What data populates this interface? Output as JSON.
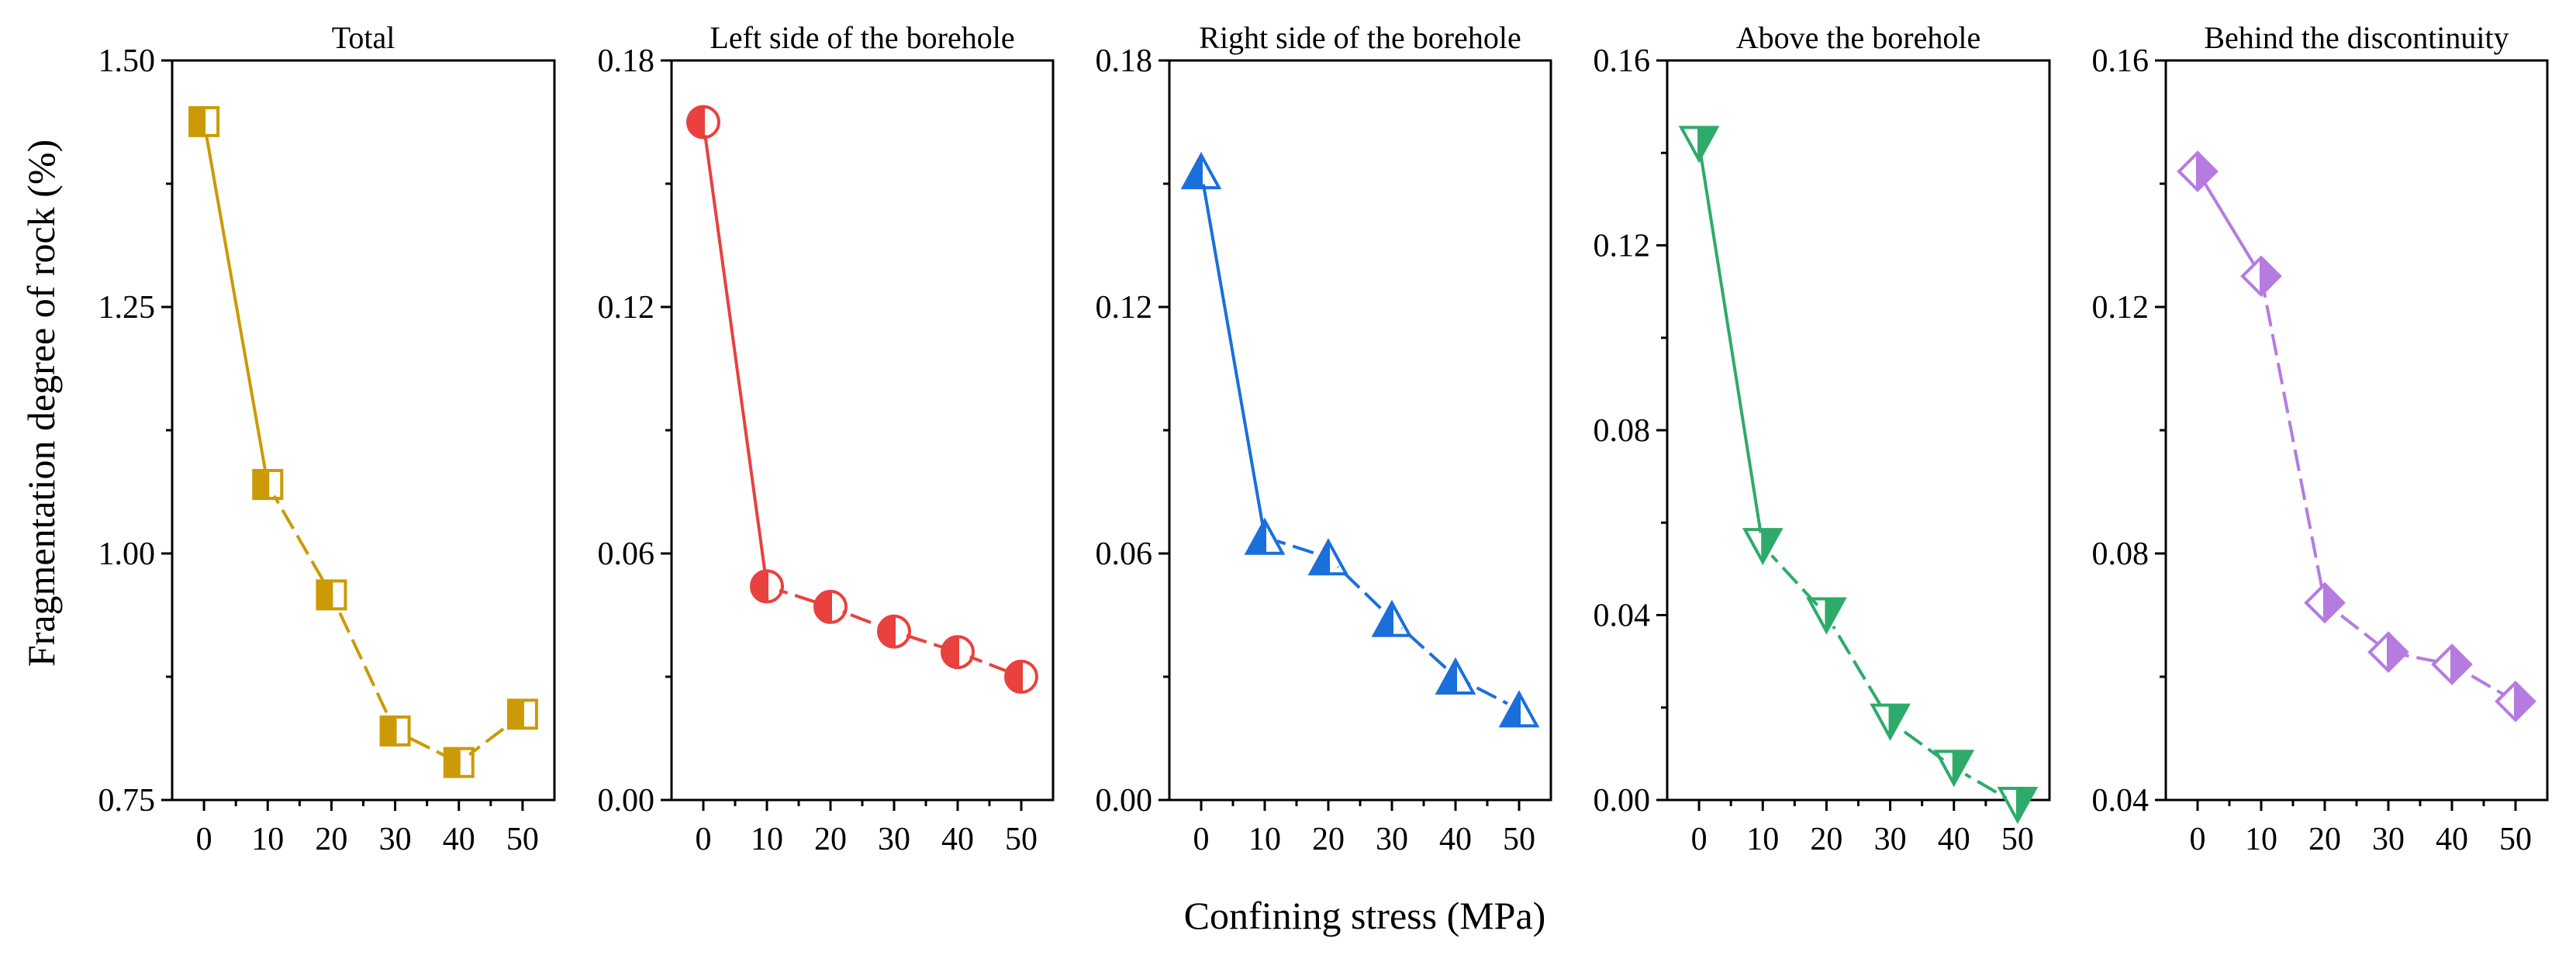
{
  "figure": {
    "shared_xlabel": "Confining stress (MPa)",
    "shared_ylabel": "Fragmentation degree of rock (%)"
  },
  "chart_data": [
    {
      "type": "line",
      "title": "Total",
      "xlabel": "Confining stress (MPa)",
      "ylabel": "Fragmentation degree of rock (%)",
      "x": [
        0,
        10,
        20,
        30,
        40,
        50
      ],
      "values": [
        1.438,
        1.07,
        0.958,
        0.82,
        0.788,
        0.837
      ],
      "xlim": [
        -5,
        55
      ],
      "ylim": [
        0.75,
        1.5
      ],
      "xticks": [
        0,
        10,
        20,
        30,
        40,
        50
      ],
      "xtick_labels": [
        "0",
        "10",
        "20",
        "30",
        "40",
        "50"
      ],
      "yticks": [
        0.75,
        1.0,
        1.25,
        1.5
      ],
      "ytick_labels": [
        "0.75",
        "1.00",
        "1.25",
        "1.50"
      ],
      "color": "#CC9A06",
      "marker": "square-half-left"
    },
    {
      "type": "line",
      "title": "Left side of the borehole",
      "xlabel": "Confining stress (MPa)",
      "ylabel": "",
      "x": [
        0,
        10,
        20,
        30,
        40,
        50
      ],
      "values": [
        0.165,
        0.052,
        0.047,
        0.041,
        0.036,
        0.03
      ],
      "xlim": [
        -5,
        55
      ],
      "ylim": [
        0.0,
        0.18
      ],
      "xticks": [
        0,
        10,
        20,
        30,
        40,
        50
      ],
      "xtick_labels": [
        "0",
        "10",
        "20",
        "30",
        "40",
        "50"
      ],
      "yticks": [
        0.0,
        0.06,
        0.12,
        0.18
      ],
      "ytick_labels": [
        "0.00",
        "0.06",
        "0.12",
        "0.18"
      ],
      "color": "#E8413E",
      "marker": "circle-half-left"
    },
    {
      "type": "line",
      "title": "Right side of the borehole",
      "xlabel": "Confining stress (MPa)",
      "ylabel": "",
      "x": [
        0,
        10,
        20,
        30,
        40,
        50
      ],
      "values": [
        0.153,
        0.064,
        0.059,
        0.044,
        0.03,
        0.022
      ],
      "xlim": [
        -5,
        55
      ],
      "ylim": [
        0.0,
        0.18
      ],
      "xticks": [
        0,
        10,
        20,
        30,
        40,
        50
      ],
      "xtick_labels": [
        "0",
        "10",
        "20",
        "30",
        "40",
        "50"
      ],
      "yticks": [
        0.0,
        0.06,
        0.12,
        0.18
      ],
      "ytick_labels": [
        "0.00",
        "0.06",
        "0.12",
        "0.18"
      ],
      "color": "#1A6FDB",
      "marker": "triangle-up-half-left"
    },
    {
      "type": "line",
      "title": "Above the borehole",
      "xlabel": "Confining stress (MPa)",
      "ylabel": "",
      "x": [
        0,
        10,
        20,
        30,
        40,
        50
      ],
      "values": [
        0.142,
        0.055,
        0.04,
        0.017,
        0.007,
        -0.001
      ],
      "xlim": [
        -5,
        55
      ],
      "ylim": [
        0.0,
        0.16
      ],
      "xticks": [
        0,
        10,
        20,
        30,
        40,
        50
      ],
      "xtick_labels": [
        "0",
        "10",
        "20",
        "30",
        "40",
        "50"
      ],
      "yticks": [
        0.0,
        0.04,
        0.08,
        0.12,
        0.16
      ],
      "ytick_labels": [
        "0.00",
        "0.04",
        "0.08",
        "0.12",
        "0.16"
      ],
      "color": "#2EAA6A",
      "marker": "triangle-down-half-right"
    },
    {
      "type": "line",
      "title": "Behind the discontinuity",
      "xlabel": "Confining stress (MPa)",
      "ylabel": "",
      "x": [
        0,
        10,
        20,
        30,
        40,
        50
      ],
      "values": [
        0.142,
        0.125,
        0.072,
        0.064,
        0.062,
        0.056
      ],
      "xlim": [
        -5,
        55
      ],
      "ylim": [
        0.04,
        0.16
      ],
      "xticks": [
        0,
        10,
        20,
        30,
        40,
        50
      ],
      "xtick_labels": [
        "0",
        "10",
        "20",
        "30",
        "40",
        "50"
      ],
      "yticks": [
        0.04,
        0.08,
        0.12,
        0.16
      ],
      "ytick_labels": [
        "0.04",
        "0.08",
        "0.12",
        "0.16"
      ],
      "color": "#B57BE0",
      "marker": "diamond-half-right"
    }
  ]
}
